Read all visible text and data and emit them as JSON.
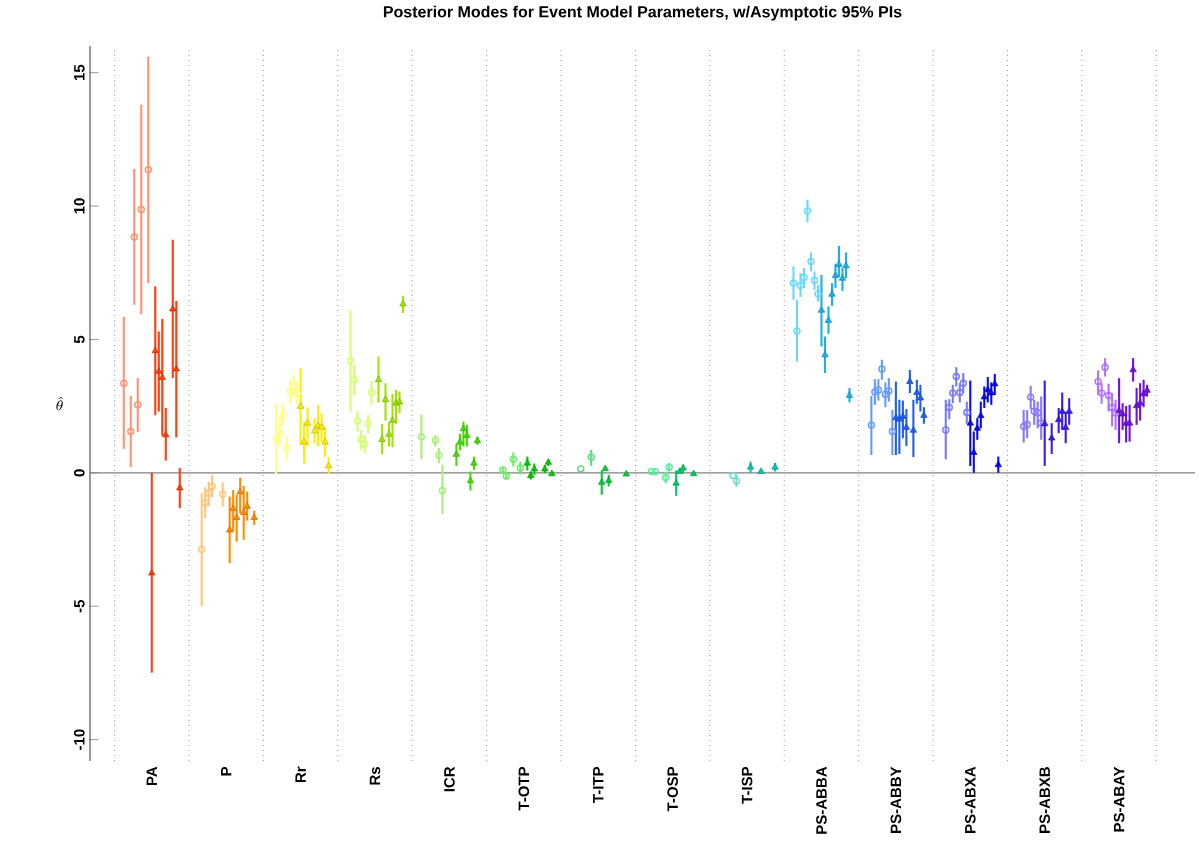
{
  "chart_data": {
    "type": "scatter",
    "title": "Posterior Modes for Event Model Parameters, w/Asymptotic 95% PIs",
    "ylabel": "\\hat{\\theta}",
    "categories": [
      "PA",
      "P",
      "Rr",
      "Rs",
      "ICR",
      "T-OTP",
      "T-ITP",
      "T-OSP",
      "T-ISP",
      "PS-ABBA",
      "PS-ABBY",
      "PS-ABXA",
      "PS-ABXB",
      "PS-ABAY"
    ],
    "ylim": [
      -10.8,
      16
    ],
    "yticks": [
      -10,
      -5,
      0,
      5,
      10,
      15
    ],
    "grid": false,
    "ref_lines": [
      {
        "axis": "y",
        "value": 0,
        "color": "#808080",
        "line_style": "solid"
      }
    ],
    "series": [
      {
        "marker": "circle",
        "colors": [
          "#FF9270",
          "#FFC57A",
          "#FFFF80",
          "#D4FF70",
          "#A8F07A",
          "#66EE66",
          "#55E07A",
          "#55EE99",
          "#66E0D0",
          "#66D9FF",
          "#6699FF",
          "#7777FF",
          "#8877FF",
          "#B070FF"
        ],
        "values": [
          3.36,
          null,
          null,
          null,
          1.35,
          null,
          null,
          null,
          null,
          7.11,
          null,
          null,
          null,
          null
        ],
        "errors": [
          [
            0.9,
            5.85
          ],
          null,
          null,
          null,
          [
            0.51,
            2.17
          ],
          null,
          null,
          null,
          null,
          [
            6.49,
            7.74
          ],
          null,
          null,
          null,
          null
        ]
      },
      {
        "marker": "circle",
        "colors": [
          "#FF9270",
          "#FFC57A",
          "#FFFF80",
          "#D4FF70",
          "#A8F07A",
          "#66EE66",
          "#55E07A",
          "#55EE99",
          "#66E0D0",
          "#66D9FF",
          "#6699FF",
          "#7777FF",
          "#8877FF",
          "#B070FF"
        ],
        "values": [
          null,
          -2.87,
          1.26,
          4.2,
          null,
          null,
          null,
          null,
          null,
          5.32,
          1.79,
          1.61,
          null,
          null
        ],
        "errors": [
          null,
          [
            -4.99,
            -0.76
          ],
          [
            -0.07,
            2.59
          ],
          [
            2.3,
            6.09
          ],
          null,
          null,
          null,
          null,
          null,
          [
            4.17,
            6.49
          ],
          [
            0.67,
            2.89
          ],
          [
            0.51,
            2.74
          ],
          null,
          null
        ]
      },
      {
        "marker": "circle",
        "colors": [
          "#FF9270",
          "#FFC57A",
          "#FFFF80",
          "#D4FF70",
          "#A8F07A",
          "#66EE66",
          "#55E07A",
          "#55EE99",
          "#66E0D0",
          "#66D9FF",
          "#6699FF",
          "#7777FF",
          "#8877FF",
          "#B070FF"
        ],
        "values": [
          1.55,
          -1.12,
          1.5,
          3.49,
          null,
          0.11,
          null,
          0.05,
          null,
          7.02,
          3.03,
          2.45,
          1.74,
          3.42
        ],
        "errors": [
          [
            0.22,
            2.89
          ],
          [
            -1.7,
            -0.54
          ],
          [
            0.99,
            2.05
          ],
          [
            2.9,
            4.05
          ],
          null,
          [
            0,
            0.22
          ],
          null,
          null,
          null,
          [
            6.59,
            7.49
          ],
          [
            2.55,
            3.51
          ],
          [
            2.01,
            2.76
          ],
          [
            1.14,
            2.36
          ],
          [
            2.92,
            3.84
          ]
        ]
      },
      {
        "marker": "circle",
        "colors": [
          "#FF9270",
          "#FFC57A",
          "#FFFF80",
          "#D4FF70",
          "#A8F07A",
          "#66EE66",
          "#55E07A",
          "#55EE99",
          "#66E0D0",
          "#66D9FF",
          "#6699FF",
          "#7777FF",
          "#8877FF",
          "#B070FF"
        ],
        "values": [
          8.84,
          -0.76,
          2.17,
          1.95,
          null,
          -0.12,
          0.15,
          0.04,
          null,
          7.32,
          3.11,
          2.99,
          1.81,
          2.99
        ],
        "errors": [
          [
            6.3,
            11.39
          ],
          [
            -1.24,
            -0.32
          ],
          [
            1.74,
            2.61
          ],
          [
            1.55,
            2.32
          ],
          null,
          [
            -0.25,
            0
          ],
          null,
          null,
          null,
          [
            6.93,
            7.68
          ],
          [
            2.71,
            3.51
          ],
          [
            2.61,
            3.3
          ],
          [
            1.3,
            2.36
          ],
          [
            2.59,
            3.36
          ]
        ]
      },
      {
        "marker": "circle",
        "colors": [
          "#FF9270",
          "#FFC57A",
          "#FFFF80",
          "#D4FF70",
          "#A8F07A",
          "#66EE66",
          "#55E07A",
          "#55EE99",
          "#66E0D0",
          "#66D9FF",
          "#6699FF",
          "#7777FF",
          "#8877FF",
          "#B070FF"
        ],
        "values": [
          2.55,
          -0.51,
          0.93,
          1.25,
          1.22,
          null,
          null,
          null,
          -0.1,
          9.82,
          3.89,
          3.61,
          2.84,
          3.96
        ],
        "errors": [
          [
            1.53,
            3.55
          ],
          [
            -0.91,
            -0.08
          ],
          [
            0.46,
            1.36
          ],
          [
            0.86,
            1.61
          ],
          [
            0.99,
            1.42
          ],
          null,
          null,
          null,
          null,
          [
            9.39,
            10.24
          ],
          [
            3.49,
            4.24
          ],
          [
            3.24,
            3.96
          ],
          [
            2.39,
            3.26
          ],
          [
            3.61,
            4.3
          ]
        ]
      },
      {
        "marker": "circle",
        "colors": [
          "#FF9270",
          "#FFC57A",
          "#FFFF80",
          "#D4FF70",
          "#A8F07A",
          "#66EE66",
          "#55E07A",
          "#55EE99",
          "#66E0D0",
          "#66D9FF",
          "#6699FF",
          "#7777FF",
          "#8877FF",
          "#B070FF"
        ],
        "values": [
          9.87,
          null,
          3.06,
          1.08,
          0.66,
          0.51,
          null,
          null,
          -0.3,
          7.92,
          2.95,
          3.01,
          2.31,
          2.9
        ],
        "errors": [
          [
            5.95,
            13.8
          ],
          null,
          [
            2.61,
            3.49
          ],
          [
            0.74,
            1.42
          ],
          [
            0.36,
            0.93
          ],
          [
            0.24,
            0.76
          ],
          null,
          null,
          [
            -0.52,
            -0.08
          ],
          [
            7.55,
            8.26
          ],
          [
            2.46,
            3.39
          ],
          [
            2.64,
            3.36
          ],
          [
            1.8,
            2.74
          ],
          [
            2.3,
            3.34
          ]
        ]
      },
      {
        "marker": "circle",
        "colors": [
          "#FF9270",
          "#FFC57A",
          "#FFFF80",
          "#D4FF70",
          "#A8F07A",
          "#66EE66",
          "#55E07A",
          "#55EE99",
          "#66E0D0",
          "#66D9FF",
          "#6699FF",
          "#7777FF",
          "#8877FF",
          "#B070FF"
        ],
        "values": [
          null,
          null,
          3.24,
          1.85,
          -0.66,
          null,
          0.59,
          -0.17,
          null,
          7.22,
          3.07,
          3.36,
          2.25,
          2.45
        ],
        "errors": [
          null,
          null,
          [
            2.8,
            3.67
          ],
          [
            1.49,
            2.17
          ],
          [
            -1.55,
            0.3
          ],
          null,
          [
            0.26,
            0.86
          ],
          [
            -0.39,
            0.05
          ],
          null,
          [
            6.86,
            7.55
          ],
          [
            2.67,
            3.55
          ],
          [
            2.99,
            3.74
          ],
          [
            1.67,
            2.67
          ],
          [
            1.74,
            2.99
          ]
        ]
      },
      {
        "marker": "circle",
        "colors": [
          "#FF9270",
          "#FFC57A",
          "#FFFF80",
          "#D4FF70",
          "#A8F07A",
          "#66EE66",
          "#55E07A",
          "#55EE99",
          "#66E0D0",
          "#66D9FF",
          "#6699FF",
          "#7777FF",
          "#8877FF",
          "#B070FF"
        ],
        "values": [
          11.36,
          -0.8,
          2.99,
          3.01,
          null,
          0.18,
          null,
          0.21,
          null,
          6.71,
          1.55,
          2.26,
          1.87,
          2.24
        ],
        "errors": [
          [
            7.11,
            15.6
          ],
          [
            -1.26,
            -0.36
          ],
          [
            2.55,
            3.42
          ],
          [
            2.55,
            3.46
          ],
          null,
          [
            -0.07,
            0.42
          ],
          null,
          [
            0.05,
            0.37
          ],
          null,
          [
            6.42,
            7.05
          ],
          [
            0.67,
            2.36
          ],
          [
            1.84,
            2.67
          ],
          [
            1.24,
            2.86
          ],
          [
            1.61,
            2.74
          ]
        ]
      },
      {
        "marker": "triangle",
        "colors": [
          "#FF3D0D",
          "#FF8C00",
          "#FFEE00",
          "#9EE600",
          "#44DD00",
          "#00CC00",
          "#00CC33",
          "#00CC66",
          "#00C8B0",
          "#18B0EE",
          "#1F5FEE",
          "#0A0AEE",
          "#3A1AEE",
          "#7010E8"
        ],
        "values": [
          -3.76,
          null,
          2.49,
          null,
          null,
          null,
          null,
          null,
          null,
          6.09,
          2.06,
          1.86,
          1.84,
          2.32
        ],
        "errors": [
          [
            -7.49,
            0
          ],
          null,
          [
            1.05,
            3.93
          ],
          null,
          null,
          null,
          null,
          null,
          null,
          [
            4.74,
            7.42
          ],
          [
            0.67,
            3.42
          ],
          [
            0.26,
            3.46
          ],
          [
            0.26,
            3.46
          ],
          [
            1.11,
            3.55
          ]
        ]
      },
      {
        "marker": "triangle",
        "colors": [
          "#FF3D0D",
          "#FF8C00",
          "#FFEE00",
          "#9EE600",
          "#44DD00",
          "#00CC00",
          "#00CC33",
          "#00CC66",
          "#00C8B0",
          "#18B0EE",
          "#1F5FEE",
          "#0A0AEE",
          "#3A1AEE",
          "#7010E8"
        ],
        "values": [
          4.57,
          -2.15,
          1.15,
          3.49,
          null,
          0.36,
          -0.36,
          -0.39,
          0.21,
          4.42,
          2.01,
          0.76,
          null,
          2.2
        ],
        "errors": [
          [
            2.16,
            6.99
          ],
          [
            -3.39,
            -0.89
          ],
          [
            0.34,
            1.92
          ],
          [
            2.64,
            4.36
          ],
          null,
          [
            0.09,
            0.61
          ],
          [
            -0.82,
            0.09
          ],
          [
            -0.86,
            0.09
          ],
          [
            0,
            0.42
          ],
          [
            3.74,
            5.11
          ],
          [
            0.71,
            2.74
          ],
          [
            0,
            1.55
          ],
          null,
          [
            1.61,
            2.61
          ]
        ]
      },
      {
        "marker": "triangle",
        "colors": [
          "#FF3D0D",
          "#FF8C00",
          "#FFEE00",
          "#9EE600",
          "#44DD00",
          "#00CC00",
          "#00CC33",
          "#00CC66",
          "#00C8B0",
          "#18B0EE",
          "#1F5FEE",
          "#0A0AEE",
          "#3A1AEE",
          "#7010E8"
        ],
        "values": [
          3.8,
          -1.35,
          1.86,
          1.25,
          0.69,
          -0.1,
          0.15,
          0.05,
          null,
          5.71,
          2.11,
          1.67,
          1.3,
          1.86
        ],
        "errors": [
          [
            2.3,
            5.3
          ],
          [
            -2.2,
            -0.64
          ],
          [
            1.01,
            2.45
          ],
          [
            0.71,
            1.83
          ],
          [
            0.26,
            1.09
          ],
          [
            -0.25,
            0.05
          ],
          null,
          null,
          null,
          [
            5.21,
            6.24
          ],
          [
            1.3,
            2.71
          ],
          [
            1.24,
            2.05
          ],
          [
            0.71,
            1.86
          ],
          [
            1.14,
            2.51
          ]
        ]
      },
      {
        "marker": "triangle",
        "colors": [
          "#FF3D0D",
          "#FF8C00",
          "#FFEE00",
          "#9EE600",
          "#44DD00",
          "#00CC00",
          "#00CC33",
          "#00CC66",
          "#00C8B0",
          "#18B0EE",
          "#1F5FEE",
          "#0A0AEE",
          "#3A1AEE",
          "#7010E8"
        ],
        "values": [
          3.57,
          -1.68,
          null,
          2.74,
          1.15,
          0.14,
          -0.29,
          0.18,
          null,
          6.69,
          1.7,
          2.14,
          null,
          1.86
        ],
        "errors": [
          [
            1.39,
            5.77
          ],
          [
            -2.58,
            -0.82
          ],
          null,
          [
            1.96,
            3.36
          ],
          [
            0.84,
            1.46
          ],
          [
            -0.07,
            0.35
          ],
          [
            -0.51,
            -0.07
          ],
          [
            0,
            0.3
          ],
          null,
          [
            6.26,
            7.11
          ],
          [
            1.01,
            2.39
          ],
          [
            1.67,
            2.67
          ],
          null,
          [
            1.17,
            2.55
          ]
        ]
      },
      {
        "marker": "triangle",
        "colors": [
          "#FF3D0D",
          "#FF8C00",
          "#FFEE00",
          "#9EE600",
          "#44DD00",
          "#00CC00",
          "#00CC33",
          "#00CC66",
          "#00C8B0",
          "#18B0EE",
          "#1F5FEE",
          "#0A0AEE",
          "#3A1AEE",
          "#7010E8"
        ],
        "values": [
          1.42,
          -0.72,
          1.57,
          1.44,
          1.65,
          null,
          null,
          null,
          0.05,
          7.39,
          3.42,
          2.84,
          1.99,
          3.86
        ],
        "errors": [
          [
            0.46,
            2.43
          ],
          [
            -1.51,
            -0.18
          ],
          [
            1.09,
            2.05
          ],
          [
            0.99,
            1.89
          ],
          [
            0.99,
            1.92
          ],
          null,
          null,
          null,
          null,
          [
            6.93,
            7.84
          ],
          [
            2.99,
            3.86
          ],
          [
            2.43,
            3.24
          ],
          [
            1.49,
            2.43
          ],
          [
            3.42,
            4.3
          ]
        ]
      },
      {
        "marker": "triangle",
        "colors": [
          "#FF3D0D",
          "#FF8C00",
          "#FFEE00",
          "#9EE600",
          "#44DD00",
          "#00CC00",
          "#00CC33",
          "#00CC66",
          "#00C8B0",
          "#18B0EE",
          "#1F5FEE",
          "#0A0AEE",
          "#3A1AEE",
          "#7010E8"
        ],
        "values": [
          null,
          -1.49,
          1.76,
          1.96,
          1.4,
          null,
          null,
          null,
          null,
          7.81,
          1.59,
          3.11,
          2.3,
          2.51
        ],
        "errors": [
          null,
          [
            -2.51,
            -0.49
          ],
          [
            0.99,
            2.55
          ],
          [
            0.96,
            2.96
          ],
          [
            0.99,
            1.8
          ],
          null,
          null,
          null,
          null,
          [
            7.34,
            8.51
          ],
          [
            0.59,
            2.74
          ],
          [
            2.64,
            3.59
          ],
          [
            1.61,
            3.01
          ],
          [
            1.8,
            3.18
          ]
        ]
      },
      {
        "marker": "triangle",
        "colors": [
          "#FF3D0D",
          "#FF8C00",
          "#FFEE00",
          "#9EE600",
          "#44DD00",
          "#00CC00",
          "#00CC33",
          "#00CC66",
          "#00C8B0",
          "#18B0EE",
          "#1F5FEE",
          "#0A0AEE",
          "#3A1AEE",
          "#7010E8"
        ],
        "values": [
          6.14,
          -1.26,
          1.71,
          2.61,
          -0.3,
          0.14,
          null,
          -0.04,
          null,
          7.29,
          3.01,
          2.99,
          1.7,
          2.61
        ],
        "errors": [
          [
            3.55,
            8.74
          ],
          [
            -1.79,
            -0.7
          ],
          [
            1.14,
            2.24
          ],
          [
            1.84,
            3.11
          ],
          [
            -0.66,
            0.05
          ],
          [
            -0.01,
            0.29
          ],
          null,
          null,
          null,
          [
            6.82,
            7.68
          ],
          [
            2.59,
            3.49
          ],
          [
            2.55,
            3.39
          ],
          [
            1.11,
            2.3
          ],
          [
            1.96,
            3.36
          ]
        ]
      },
      {
        "marker": "triangle",
        "colors": [
          "#FF3D0D",
          "#FF8C00",
          "#FFEE00",
          "#9EE600",
          "#44DD00",
          "#00CC00",
          "#00CC33",
          "#00CC66",
          "#00C8B0",
          "#18B0EE",
          "#1F5FEE",
          "#0A0AEE",
          "#3A1AEE",
          "#7010E8"
        ],
        "values": [
          3.89,
          null,
          1.15,
          2.65,
          0.36,
          0.39,
          null,
          null,
          null,
          7.76,
          2.8,
          3.33,
          2.3,
          2.96
        ],
        "errors": [
          [
            1.33,
            6.44
          ],
          null,
          [
            0.59,
            1.71
          ],
          [
            2.24,
            3.05
          ],
          [
            0.11,
            0.61
          ],
          [
            0.26,
            0.5
          ],
          null,
          null,
          null,
          [
            7.3,
            8.26
          ],
          [
            2.3,
            3.3
          ],
          [
            2.92,
            3.71
          ],
          [
            1.8,
            2.8
          ],
          [
            2.46,
            3.49
          ]
        ]
      },
      {
        "marker": "triangle",
        "colors": [
          "#FF3D0D",
          "#FF8C00",
          "#FFEE00",
          "#9EE600",
          "#44DD00",
          "#00CC00",
          "#00CC33",
          "#00CC66",
          "#00C8B0",
          "#18B0EE",
          "#1F5FEE",
          "#0A0AEE",
          "#3A1AEE",
          "#7010E8"
        ],
        "values": [
          -0.57,
          -1.68,
          0.26,
          6.33,
          1.2,
          -0.04,
          -0.05,
          null,
          0.21,
          2.9,
          2.15,
          0.3,
          null,
          3.09
        ],
        "errors": [
          [
            -1.32,
            0.18
          ],
          [
            -1.95,
            -1.42
          ],
          [
            -0.04,
            0.59
          ],
          [
            5.99,
            6.64
          ],
          [
            1.05,
            1.36
          ],
          null,
          null,
          null,
          [
            0.05,
            0.37
          ],
          [
            2.64,
            3.18
          ],
          [
            1.84,
            2.46
          ],
          [
            0,
            0.61
          ],
          null,
          [
            2.86,
            3.3
          ]
        ]
      }
    ]
  }
}
